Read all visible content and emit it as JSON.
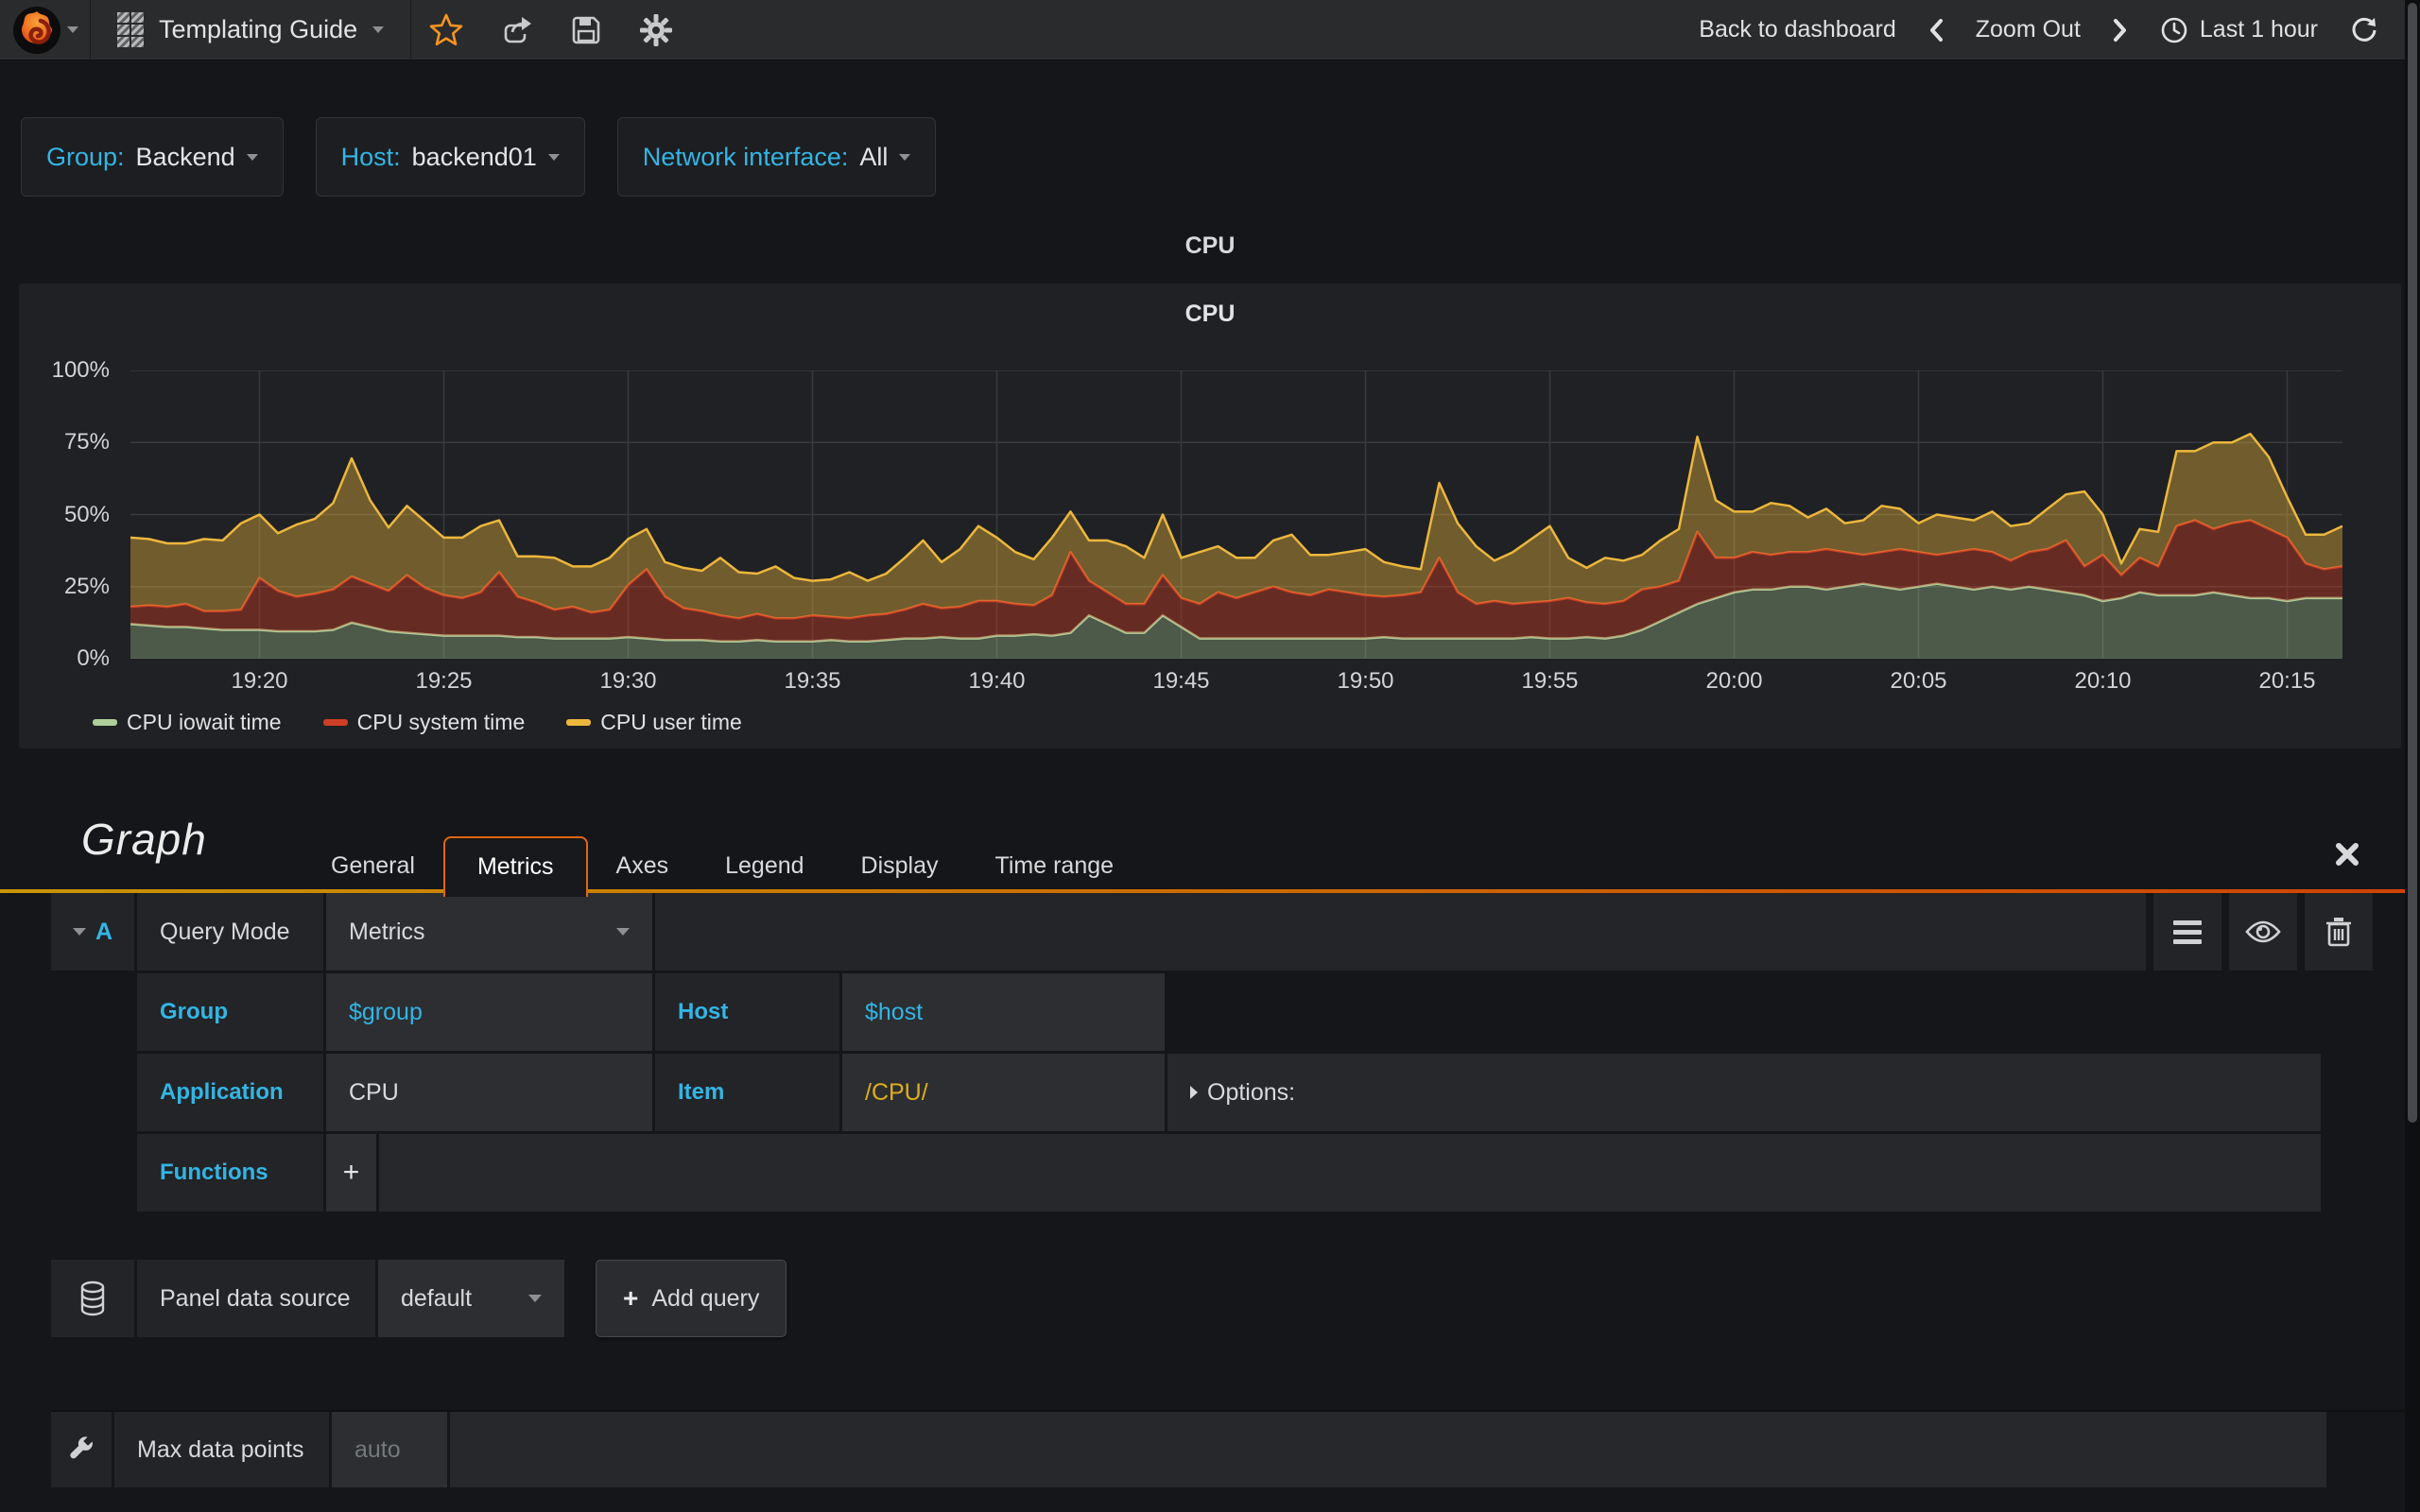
{
  "navbar": {
    "dashboard_title": "Templating Guide",
    "back_to_dashboard": "Back to dashboard",
    "zoom_out": "Zoom Out",
    "time_range": "Last 1 hour"
  },
  "variables": {
    "group_label": "Group:",
    "group_value": "Backend",
    "host_label": "Host:",
    "host_value": "backend01",
    "net_label": "Network interface:",
    "net_value": "All"
  },
  "row_title": "CPU",
  "panel": {
    "title": "CPU"
  },
  "chart_data": {
    "type": "area",
    "stacked": true,
    "title": "CPU",
    "ylabel": "percent",
    "ylim": [
      0,
      100
    ],
    "grid": true,
    "grid_color": "#383a3d",
    "legend_position": "bottom",
    "x_range_minutes": 60,
    "step_minutes": 0.5,
    "x_tick_minutes": [
      3.5,
      8.5,
      13.5,
      18.5,
      23.5,
      28.5,
      33.5,
      38.5,
      43.5,
      48.5,
      53.5,
      58.5
    ],
    "x_tick_labels": [
      "19:20",
      "19:25",
      "19:30",
      "19:35",
      "19:40",
      "19:45",
      "19:50",
      "19:55",
      "20:00",
      "20:05",
      "20:10",
      "20:15"
    ],
    "y_ticks": [
      0,
      25,
      50,
      75,
      100
    ],
    "y_tick_labels": [
      "0%",
      "25%",
      "50%",
      "75%",
      "100%"
    ],
    "series": [
      {
        "name": "CPU iowait time",
        "color": "#aecf9a",
        "fill": "rgba(174,207,152,0.32)",
        "values": [
          12,
          11.5,
          11,
          11,
          10.5,
          10,
          10,
          10,
          9.5,
          9.5,
          9.5,
          10,
          12.5,
          11,
          9.5,
          9,
          8.5,
          8,
          8,
          8,
          8,
          7.5,
          7.5,
          7,
          7,
          7,
          7,
          7.5,
          7,
          6.5,
          6.5,
          6.5,
          6,
          6,
          6.5,
          6,
          6,
          6,
          6.5,
          6,
          6,
          6.5,
          7,
          7,
          7.5,
          7,
          7,
          8,
          8,
          8.5,
          8,
          9,
          15,
          12,
          9,
          9,
          15,
          11,
          7,
          7,
          7,
          7,
          7,
          7,
          7,
          7,
          7,
          7,
          7.5,
          7,
          7,
          7,
          7,
          7,
          7,
          7,
          7.5,
          7,
          7,
          7.5,
          7,
          8,
          10,
          13,
          16,
          19,
          21,
          23,
          24,
          24,
          25,
          25,
          24,
          25,
          26,
          25,
          24,
          25,
          26,
          25,
          24,
          25,
          24,
          25,
          24,
          23,
          22,
          20,
          21,
          23,
          22,
          22,
          22,
          23,
          22,
          21,
          21,
          20,
          21,
          21,
          21
        ]
      },
      {
        "name": "CPU system time",
        "color": "#cf3f25",
        "fill": "rgba(207,63,37,0.40)",
        "values": [
          6,
          7,
          7,
          8,
          6,
          6.5,
          7,
          18,
          14,
          12,
          13,
          14,
          16,
          15,
          14,
          20,
          16,
          14,
          13,
          15,
          22,
          14,
          12,
          10,
          11,
          9,
          10,
          18,
          24,
          15,
          11,
          10,
          9,
          8,
          9,
          8,
          8,
          9,
          8,
          8,
          9,
          9,
          10,
          12,
          10,
          11,
          13,
          12,
          11,
          10,
          14,
          28,
          12,
          11,
          10,
          10,
          14,
          10,
          12,
          16,
          14,
          16,
          18,
          16,
          15,
          17,
          16,
          15,
          14,
          15,
          16,
          28,
          16,
          12,
          13,
          12,
          12,
          13,
          14,
          12,
          12,
          12,
          14,
          12,
          11,
          25,
          14,
          12,
          13,
          12,
          12,
          12,
          14,
          12,
          10,
          12,
          14,
          12,
          10,
          12,
          14,
          12,
          10,
          12,
          14,
          18,
          10,
          16,
          8,
          12,
          10,
          24,
          26,
          22,
          25,
          27,
          24,
          22,
          12,
          10,
          11
        ]
      },
      {
        "name": "CPU user time",
        "color": "#ecb73d",
        "fill": "rgba(236,183,61,0.40)",
        "values": [
          24,
          23,
          22,
          21,
          25,
          24.5,
          30,
          22,
          20,
          25,
          26,
          30,
          41,
          29,
          22,
          24,
          23,
          20,
          21,
          23,
          18,
          14,
          16,
          18,
          14,
          16,
          18,
          16,
          14,
          12,
          14,
          14,
          20,
          16,
          14,
          18,
          14,
          12,
          13,
          16,
          12,
          14,
          18,
          22,
          16,
          20,
          26,
          22,
          18,
          16,
          20,
          14,
          14,
          18,
          20,
          16,
          21,
          14,
          18,
          16,
          14,
          12,
          16,
          20,
          14,
          12,
          14,
          16,
          12,
          10,
          8,
          26,
          24,
          20,
          14,
          18,
          22,
          26,
          14,
          12,
          16,
          14,
          12,
          16,
          18,
          33,
          20,
          16,
          14,
          18,
          16,
          12,
          14,
          10,
          12,
          16,
          14,
          10,
          14,
          12,
          10,
          14,
          12,
          10,
          14,
          16,
          26,
          14,
          4,
          10,
          12,
          26,
          24,
          30,
          28,
          30,
          25,
          14,
          10,
          12,
          14
        ]
      }
    ]
  },
  "editor": {
    "title": "Graph",
    "tabs": [
      "General",
      "Metrics",
      "Axes",
      "Legend",
      "Display",
      "Time range"
    ],
    "query": {
      "letter": "A",
      "query_mode_label": "Query Mode",
      "query_mode_value": "Metrics",
      "group_label": "Group",
      "group_value": "$group",
      "host_label": "Host",
      "host_value": "$host",
      "application_label": "Application",
      "application_value": "CPU",
      "item_label": "Item",
      "item_value": "/CPU/",
      "options_label": "Options:",
      "functions_label": "Functions",
      "add_function": "+"
    },
    "datasource": {
      "label": "Panel data source",
      "value": "default",
      "add_query_plus": "+",
      "add_query": "Add query"
    },
    "settings": {
      "max_data_points_label": "Max data points",
      "max_data_points_placeholder": "auto"
    }
  }
}
